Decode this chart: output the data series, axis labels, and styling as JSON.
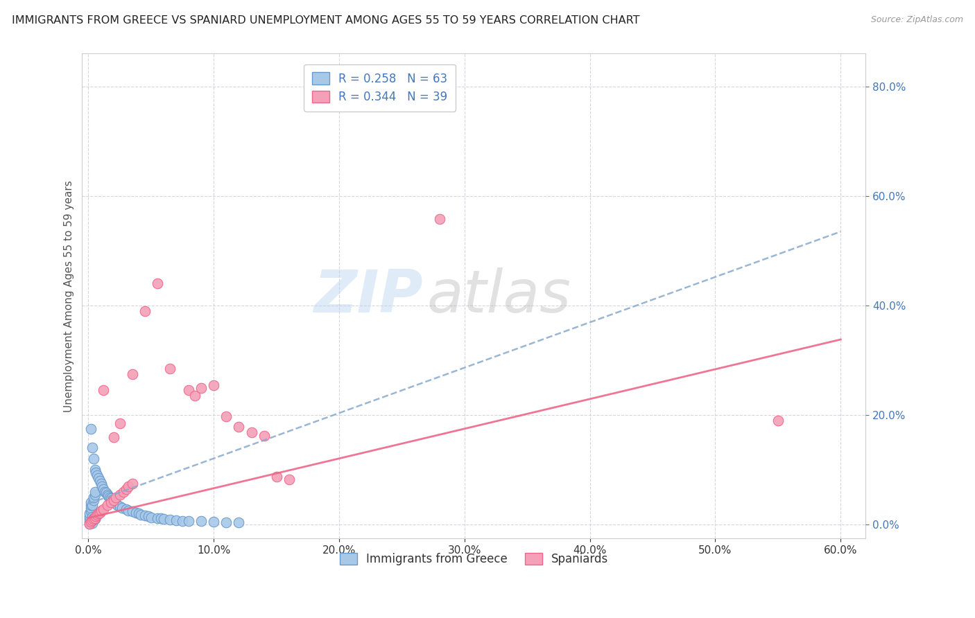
{
  "title": "IMMIGRANTS FROM GREECE VS SPANIARD UNEMPLOYMENT AMONG AGES 55 TO 59 YEARS CORRELATION CHART",
  "source": "Source: ZipAtlas.com",
  "ylabel": "Unemployment Among Ages 55 to 59 years",
  "legend_label1": "Immigrants from Greece",
  "legend_label2": "Spaniards",
  "r1": "0.258",
  "n1": "63",
  "r2": "0.344",
  "n2": "39",
  "xmax": 0.62,
  "ymax": 0.86,
  "xmin": -0.005,
  "ymin": -0.025,
  "color_blue": "#a8c8e8",
  "color_pink": "#f4a0b8",
  "color_blue_edge": "#6699cc",
  "color_pink_edge": "#ee6688",
  "color_blue_text": "#4477bb",
  "color_axis_right": "#4477bb",
  "color_trendline_blue": "#88aacc",
  "color_trendline_pink": "#ee6688",
  "scatter_blue": [
    [
      0.001,
      0.002
    ],
    [
      0.001,
      0.005
    ],
    [
      0.001,
      0.01
    ],
    [
      0.001,
      0.015
    ],
    [
      0.001,
      0.02
    ],
    [
      0.002,
      0.025
    ],
    [
      0.002,
      0.03
    ],
    [
      0.002,
      0.035
    ],
    [
      0.002,
      0.04
    ],
    [
      0.002,
      0.175
    ],
    [
      0.003,
      0.003
    ],
    [
      0.003,
      0.008
    ],
    [
      0.003,
      0.014
    ],
    [
      0.003,
      0.035
    ],
    [
      0.003,
      0.14
    ],
    [
      0.004,
      0.012
    ],
    [
      0.004,
      0.045
    ],
    [
      0.004,
      0.05
    ],
    [
      0.004,
      0.12
    ],
    [
      0.005,
      0.01
    ],
    [
      0.005,
      0.055
    ],
    [
      0.005,
      0.06
    ],
    [
      0.005,
      0.1
    ],
    [
      0.006,
      0.095
    ],
    [
      0.007,
      0.09
    ],
    [
      0.008,
      0.085
    ],
    [
      0.009,
      0.08
    ],
    [
      0.01,
      0.075
    ],
    [
      0.011,
      0.07
    ],
    [
      0.012,
      0.065
    ],
    [
      0.013,
      0.06
    ],
    [
      0.014,
      0.058
    ],
    [
      0.015,
      0.055
    ],
    [
      0.016,
      0.052
    ],
    [
      0.017,
      0.05
    ],
    [
      0.018,
      0.048
    ],
    [
      0.019,
      0.045
    ],
    [
      0.02,
      0.043
    ],
    [
      0.021,
      0.04
    ],
    [
      0.022,
      0.038
    ],
    [
      0.023,
      0.035
    ],
    [
      0.025,
      0.033
    ],
    [
      0.027,
      0.03
    ],
    [
      0.03,
      0.028
    ],
    [
      0.032,
      0.026
    ],
    [
      0.035,
      0.024
    ],
    [
      0.038,
      0.022
    ],
    [
      0.04,
      0.02
    ],
    [
      0.042,
      0.018
    ],
    [
      0.045,
      0.016
    ],
    [
      0.048,
      0.015
    ],
    [
      0.05,
      0.013
    ],
    [
      0.055,
      0.012
    ],
    [
      0.058,
      0.011
    ],
    [
      0.06,
      0.01
    ],
    [
      0.065,
      0.009
    ],
    [
      0.07,
      0.008
    ],
    [
      0.075,
      0.007
    ],
    [
      0.08,
      0.007
    ],
    [
      0.09,
      0.006
    ],
    [
      0.1,
      0.005
    ],
    [
      0.11,
      0.004
    ],
    [
      0.12,
      0.004
    ]
  ],
  "scatter_pink": [
    [
      0.001,
      0.001
    ],
    [
      0.002,
      0.005
    ],
    [
      0.003,
      0.008
    ],
    [
      0.004,
      0.01
    ],
    [
      0.005,
      0.012
    ],
    [
      0.006,
      0.015
    ],
    [
      0.007,
      0.018
    ],
    [
      0.008,
      0.02
    ],
    [
      0.009,
      0.022
    ],
    [
      0.01,
      0.025
    ],
    [
      0.012,
      0.028
    ],
    [
      0.015,
      0.035
    ],
    [
      0.018,
      0.04
    ],
    [
      0.02,
      0.045
    ],
    [
      0.022,
      0.05
    ],
    [
      0.025,
      0.055
    ],
    [
      0.028,
      0.06
    ],
    [
      0.03,
      0.065
    ],
    [
      0.032,
      0.07
    ],
    [
      0.035,
      0.075
    ],
    [
      0.012,
      0.245
    ],
    [
      0.02,
      0.16
    ],
    [
      0.025,
      0.185
    ],
    [
      0.035,
      0.275
    ],
    [
      0.045,
      0.39
    ],
    [
      0.055,
      0.44
    ],
    [
      0.065,
      0.285
    ],
    [
      0.08,
      0.245
    ],
    [
      0.085,
      0.235
    ],
    [
      0.09,
      0.25
    ],
    [
      0.1,
      0.255
    ],
    [
      0.11,
      0.198
    ],
    [
      0.12,
      0.178
    ],
    [
      0.13,
      0.168
    ],
    [
      0.14,
      0.162
    ],
    [
      0.15,
      0.088
    ],
    [
      0.16,
      0.082
    ],
    [
      0.28,
      0.558
    ],
    [
      0.55,
      0.19
    ]
  ],
  "trendline_blue": [
    [
      0.0,
      0.038
    ],
    [
      0.6,
      0.535
    ]
  ],
  "trendline_pink": [
    [
      0.0,
      0.012
    ],
    [
      0.6,
      0.338
    ]
  ],
  "watermark_zip": "ZIP",
  "watermark_atlas": "atlas",
  "background_color": "#ffffff",
  "grid_color": "#ccccdd",
  "yticks": [
    0.0,
    0.2,
    0.4,
    0.6,
    0.8
  ],
  "xticks": [
    0.0,
    0.1,
    0.2,
    0.3,
    0.4,
    0.5,
    0.6
  ]
}
